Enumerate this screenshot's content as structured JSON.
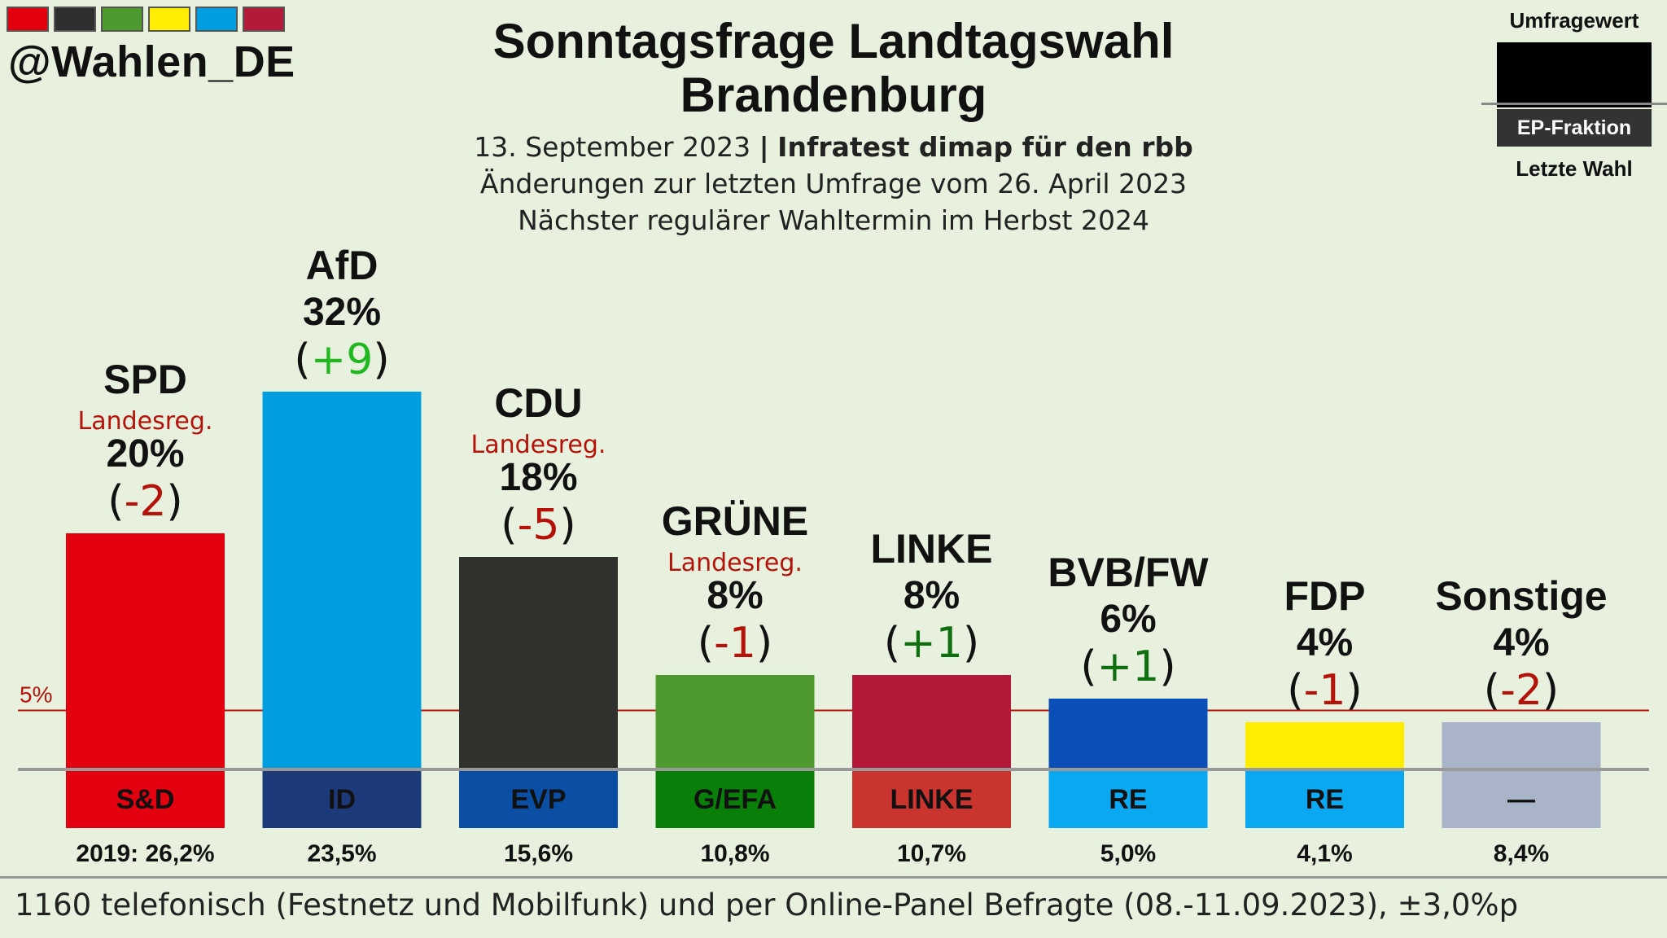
{
  "handle": "@Wahlen_DE",
  "header_stripes": [
    "#e3000f",
    "#2f2f2f",
    "#4e9a2e",
    "#ffed00",
    "#009ee0",
    "#b5193a"
  ],
  "title_line1": "Sonntagsfrage Landtagswahl",
  "title_line2": "Brandenburg",
  "subtitle": {
    "date": "13. September 2023",
    "separator": "|",
    "institute": "Infratest dimap für den rbb",
    "changes": "Änderungen zur letzten Umfrage vom 26. April 2023",
    "next_election": "Nächster regulärer Wahltermin im Herbst 2024"
  },
  "legend": {
    "top": "Umfragewert",
    "middle": "EP-Fraktion",
    "bottom": "Letzte Wahl"
  },
  "footnote": "1160 telefonisch (Festnetz und Mobilfunk) und per Online-Panel Befragte (08.-11.09.2023), ±3,0%p",
  "chart_data": {
    "type": "bar",
    "threshold": {
      "value": 5,
      "label": "5%",
      "color": "#b5120a"
    },
    "parties": [
      {
        "name": "SPD",
        "government": "Landesreg.",
        "value": 20,
        "label": "20%",
        "change": "-2",
        "color": "#e3000f",
        "group": "S&D",
        "group_color": "#e3000f",
        "group_text": "#111111",
        "last_election": "2019: 26,2%"
      },
      {
        "name": "AfD",
        "government": "",
        "value": 32,
        "label": "32%",
        "change": "+9",
        "color": "#009ee0",
        "group": "ID",
        "group_color": "#1c3a7a",
        "group_text": "#111111",
        "last_election": "23,5%"
      },
      {
        "name": "CDU",
        "government": "Landesreg.",
        "value": 18,
        "label": "18%",
        "change": "-5",
        "color": "#30302c",
        "group": "EVP",
        "group_color": "#0a4fa3",
        "group_text": "#111111",
        "last_election": "15,6%"
      },
      {
        "name": "GRÜNE",
        "government": "Landesreg.",
        "value": 8,
        "label": "8%",
        "change": "-1",
        "color": "#4e9a2e",
        "group": "G/EFA",
        "group_color": "#097f0a",
        "group_text": "#111111",
        "last_election": "10,8%"
      },
      {
        "name": "LINKE",
        "government": "",
        "value": 8,
        "label": "8%",
        "change": "+1",
        "color": "#b5193a",
        "group": "LINKE",
        "group_color": "#c9342f",
        "group_text": "#111111",
        "last_election": "10,7%"
      },
      {
        "name": "BVB/FW",
        "government": "",
        "value": 6,
        "label": "6%",
        "change": "+1",
        "color": "#0a4fb8",
        "group": "RE",
        "group_color": "#0aa8f0",
        "group_text": "#111111",
        "last_election": "5,0%"
      },
      {
        "name": "FDP",
        "government": "",
        "value": 4,
        "label": "4%",
        "change": "-1",
        "color": "#ffed00",
        "group": "RE",
        "group_color": "#0aa8f0",
        "group_text": "#111111",
        "last_election": "4,1%"
      },
      {
        "name": "Sonstige",
        "government": "",
        "value": 4,
        "label": "4%",
        "change": "-2",
        "color": "#aab4c8",
        "group": "—",
        "group_color": "#aab4c8",
        "group_text": "#111111",
        "last_election": "8,4%"
      }
    ],
    "colors": {
      "positive": "#1fb81f",
      "positive_dark": "#0f6e0f",
      "negative": "#b5120a",
      "government": "#b5120a"
    }
  }
}
